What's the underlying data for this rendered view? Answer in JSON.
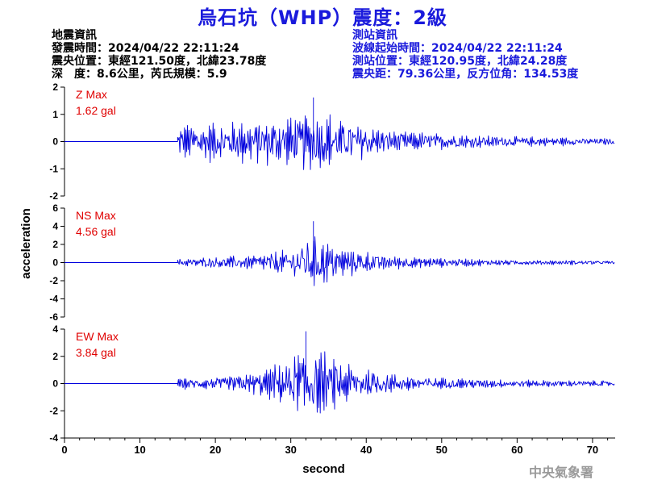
{
  "header": {
    "title": "烏石坑（WHP）震度：2級"
  },
  "quake_info": {
    "heading": "地震資訊",
    "origin_time": "發震時間：2024/04/22 22:11:24",
    "epicenter": "震央位置：東經121.50度，北緯23.78度",
    "depth_magnitude": "深　度：8.6公里，芮氏規模：5.9"
  },
  "station_info": {
    "heading": "測站資訊",
    "wave_start": "波線起始時間：2024/04/22 22:11:24",
    "station_location": "測站位置：東經120.95度，北緯24.28度",
    "distance_azimuth": "震央距：79.36公里，反方位角：134.53度"
  },
  "agency": "中央氣象署",
  "colors": {
    "title": "#1a1adc",
    "trace": "#0000dd",
    "max_label": "#e00000",
    "axis": "#000000"
  },
  "chart_data": {
    "type": "line",
    "xlabel": "second",
    "ylabel": "acceleration",
    "xlim": [
      0,
      73
    ],
    "x_ticks": [
      0,
      10,
      20,
      30,
      40,
      50,
      60,
      70
    ],
    "onset_seconds": 15,
    "panels": [
      {
        "name": "Z",
        "max_label": "Z Max",
        "max_value": "1.62 gal",
        "ylim": [
          -2,
          2
        ],
        "y_ticks": [
          2,
          1,
          0,
          -1,
          -2
        ],
        "peak": 1.62,
        "envelope": [
          [
            15,
            0.9
          ],
          [
            18,
            1.0
          ],
          [
            22,
            1.1
          ],
          [
            28,
            1.3
          ],
          [
            33,
            1.6
          ],
          [
            38,
            1.1
          ],
          [
            42,
            0.7
          ],
          [
            47,
            0.5
          ],
          [
            55,
            0.35
          ],
          [
            65,
            0.22
          ],
          [
            73,
            0.16
          ]
        ]
      },
      {
        "name": "NS",
        "max_label": "NS Max",
        "max_value": "4.56 gal",
        "ylim": [
          -6,
          6
        ],
        "y_ticks": [
          6,
          4,
          2,
          0,
          -2,
          -4,
          -6
        ],
        "peak": 4.56,
        "envelope": [
          [
            15,
            0.6
          ],
          [
            20,
            0.9
          ],
          [
            25,
            1.2
          ],
          [
            30,
            2.2
          ],
          [
            33,
            4.5
          ],
          [
            36,
            2.6
          ],
          [
            40,
            1.7
          ],
          [
            45,
            1.0
          ],
          [
            50,
            0.7
          ],
          [
            60,
            0.4
          ],
          [
            73,
            0.3
          ]
        ]
      },
      {
        "name": "EW",
        "max_label": "EW Max",
        "max_value": "3.84 gal",
        "ylim": [
          -4,
          4
        ],
        "y_ticks": [
          4,
          2,
          0,
          -2,
          -4
        ],
        "peak": 3.84,
        "envelope": [
          [
            15,
            0.5
          ],
          [
            20,
            0.7
          ],
          [
            25,
            1.1
          ],
          [
            29,
            2.2
          ],
          [
            32,
            3.8
          ],
          [
            35,
            2.9
          ],
          [
            40,
            1.5
          ],
          [
            45,
            0.9
          ],
          [
            50,
            0.6
          ],
          [
            60,
            0.4
          ],
          [
            73,
            0.3
          ]
        ]
      }
    ]
  }
}
